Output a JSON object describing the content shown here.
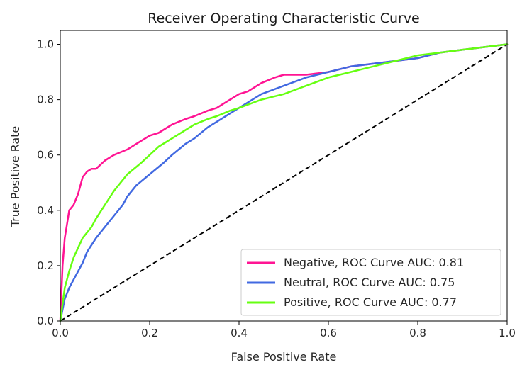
{
  "chart_data": {
    "type": "line",
    "title": "Receiver Operating Characteristic Curve",
    "xlabel": "False Positive Rate",
    "ylabel": "True Positive Rate",
    "xlim": [
      0,
      1
    ],
    "ylim": [
      0,
      1.05
    ],
    "xticks": [
      0.0,
      0.2,
      0.4,
      0.6,
      0.8,
      1.0
    ],
    "xtick_labels": [
      "0.0",
      "0.2",
      "0.4",
      "0.6",
      "0.8",
      "1.0"
    ],
    "yticks": [
      0.0,
      0.2,
      0.4,
      0.6,
      0.8,
      1.0
    ],
    "ytick_labels": [
      "0.0",
      "0.2",
      "0.4",
      "0.6",
      "0.8",
      "1.0"
    ],
    "grid": false,
    "legend_position": "bottom-right",
    "series": [
      {
        "name": "Negative, ROC Curve AUC: 0.81",
        "color": "#ff1493",
        "x": [
          0.0,
          0.005,
          0.01,
          0.015,
          0.02,
          0.03,
          0.04,
          0.05,
          0.06,
          0.07,
          0.08,
          0.1,
          0.12,
          0.15,
          0.18,
          0.2,
          0.22,
          0.25,
          0.28,
          0.3,
          0.33,
          0.35,
          0.38,
          0.4,
          0.42,
          0.45,
          0.48,
          0.5,
          0.55,
          0.6,
          0.65,
          0.7,
          0.75,
          0.8,
          0.85,
          0.9,
          0.95,
          1.0
        ],
        "y": [
          0.0,
          0.2,
          0.3,
          0.35,
          0.4,
          0.42,
          0.46,
          0.52,
          0.54,
          0.55,
          0.55,
          0.58,
          0.6,
          0.62,
          0.65,
          0.67,
          0.68,
          0.71,
          0.73,
          0.74,
          0.76,
          0.77,
          0.8,
          0.82,
          0.83,
          0.86,
          0.88,
          0.89,
          0.89,
          0.9,
          0.92,
          0.93,
          0.94,
          0.95,
          0.97,
          0.98,
          0.99,
          1.0
        ]
      },
      {
        "name": "Neutral, ROC Curve AUC: 0.75",
        "color": "#4169e1",
        "x": [
          0.0,
          0.01,
          0.02,
          0.03,
          0.04,
          0.05,
          0.06,
          0.08,
          0.1,
          0.12,
          0.14,
          0.15,
          0.17,
          0.2,
          0.23,
          0.25,
          0.28,
          0.3,
          0.33,
          0.35,
          0.38,
          0.4,
          0.43,
          0.45,
          0.5,
          0.55,
          0.6,
          0.65,
          0.7,
          0.75,
          0.8,
          0.85,
          0.9,
          0.95,
          1.0
        ],
        "y": [
          0.0,
          0.08,
          0.12,
          0.15,
          0.18,
          0.21,
          0.25,
          0.3,
          0.34,
          0.38,
          0.42,
          0.45,
          0.49,
          0.53,
          0.57,
          0.6,
          0.64,
          0.66,
          0.7,
          0.72,
          0.75,
          0.77,
          0.8,
          0.82,
          0.85,
          0.88,
          0.9,
          0.92,
          0.93,
          0.94,
          0.95,
          0.97,
          0.98,
          0.99,
          1.0
        ]
      },
      {
        "name": "Positive, ROC Curve AUC: 0.77",
        "color": "#66ff11",
        "x": [
          0.0,
          0.01,
          0.02,
          0.03,
          0.05,
          0.07,
          0.08,
          0.1,
          0.12,
          0.15,
          0.18,
          0.2,
          0.22,
          0.25,
          0.28,
          0.3,
          0.33,
          0.35,
          0.38,
          0.4,
          0.45,
          0.5,
          0.55,
          0.6,
          0.65,
          0.7,
          0.75,
          0.8,
          0.85,
          0.9,
          0.95,
          1.0
        ],
        "y": [
          0.0,
          0.12,
          0.18,
          0.23,
          0.3,
          0.34,
          0.37,
          0.42,
          0.47,
          0.53,
          0.57,
          0.6,
          0.63,
          0.66,
          0.69,
          0.71,
          0.73,
          0.74,
          0.76,
          0.77,
          0.8,
          0.82,
          0.85,
          0.88,
          0.9,
          0.92,
          0.94,
          0.96,
          0.97,
          0.98,
          0.99,
          1.0
        ]
      }
    ],
    "reference_line": {
      "color": "#000000",
      "style": "dashed",
      "x": [
        0.0,
        1.0
      ],
      "y": [
        0.0,
        1.0
      ]
    }
  }
}
